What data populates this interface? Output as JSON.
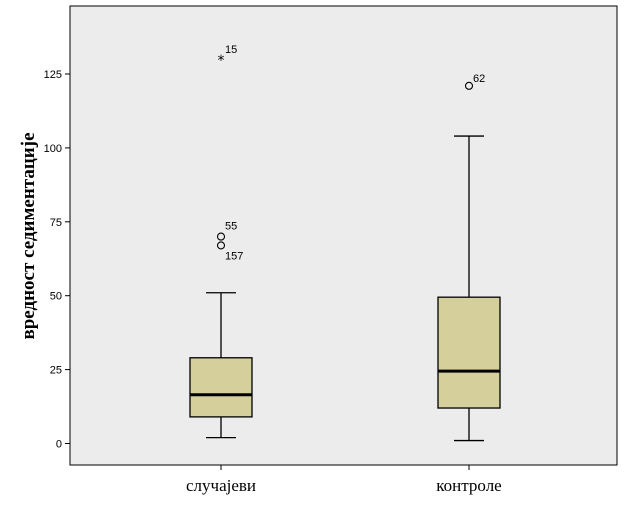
{
  "chart_data": {
    "type": "boxplot",
    "ylabel": "вредност седиментације",
    "xlabel": "",
    "ylim": [
      -7,
      148
    ],
    "yticks": [
      0,
      25,
      50,
      75,
      100,
      125
    ],
    "grid": false,
    "colors": {
      "plot_bg": "#ececec",
      "box_fill": "#d4cf9b",
      "stroke": "#000000"
    },
    "categories": [
      "случајеви",
      "контроле"
    ],
    "boxes": [
      {
        "category": "случајеви",
        "whisker_low": 2,
        "q1": 9,
        "median": 16.5,
        "q3": 29,
        "whisker_high": 51,
        "outliers": [
          {
            "value": 70,
            "label": "55",
            "marker": "circle"
          },
          {
            "value": 67,
            "label": "157",
            "marker": "circle"
          },
          {
            "value": 130,
            "label": "15",
            "marker": "star"
          }
        ]
      },
      {
        "category": "контроле",
        "whisker_low": 1,
        "q1": 12,
        "median": 24.5,
        "q3": 49.5,
        "whisker_high": 104,
        "outliers": [
          {
            "value": 121,
            "label": "62",
            "marker": "circle"
          }
        ]
      }
    ]
  }
}
